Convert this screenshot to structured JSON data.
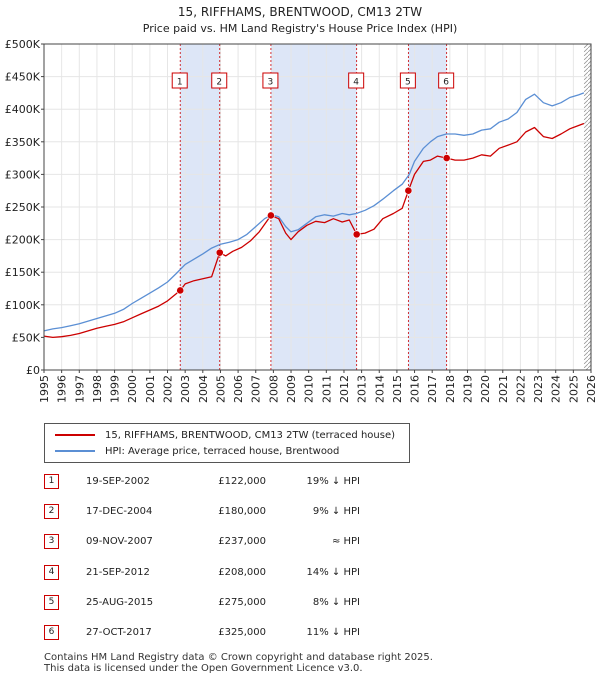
{
  "chart_data": {
    "type": "line",
    "title": "15, RIFFHAMS, BRENTWOOD, CM13 2TW",
    "subtitle": "Price paid vs. HM Land Registry's House Price Index (HPI)",
    "xlim": [
      1995,
      2026
    ],
    "ylim": [
      0,
      500000
    ],
    "x_ticks": [
      "1995",
      "1996",
      "1997",
      "1998",
      "1999",
      "2000",
      "2001",
      "2002",
      "2003",
      "2004",
      "2005",
      "2006",
      "2007",
      "2008",
      "2009",
      "2010",
      "2011",
      "2012",
      "2013",
      "2014",
      "2015",
      "2016",
      "2017",
      "2018",
      "2019",
      "2020",
      "2021",
      "2022",
      "2023",
      "2024",
      "2025",
      "2026"
    ],
    "y_ticks": [
      {
        "value": 0,
        "label": "£0"
      },
      {
        "value": 50000,
        "label": "£50K"
      },
      {
        "value": 100000,
        "label": "£100K"
      },
      {
        "value": 150000,
        "label": "£150K"
      },
      {
        "value": 200000,
        "label": "£200K"
      },
      {
        "value": 250000,
        "label": "£250K"
      },
      {
        "value": 300000,
        "label": "£300K"
      },
      {
        "value": 350000,
        "label": "£350K"
      },
      {
        "value": 400000,
        "label": "£400K"
      },
      {
        "value": 450000,
        "label": "£450K"
      },
      {
        "value": 500000,
        "label": "£500K"
      }
    ],
    "colors": {
      "property": "#cc0000",
      "hpi": "#5b8fd4",
      "shade": "#dde6f7",
      "marker_line": "#cc0000"
    },
    "series": [
      {
        "name": "15, RIFFHAMS, BRENTWOOD, CM13 2TW (terraced house)",
        "color": "#cc0000",
        "points": [
          [
            1995.0,
            52000
          ],
          [
            1995.5,
            50000
          ],
          [
            1996.0,
            51000
          ],
          [
            1996.5,
            53000
          ],
          [
            1997.0,
            56000
          ],
          [
            1997.5,
            60000
          ],
          [
            1998.0,
            64000
          ],
          [
            1998.5,
            67000
          ],
          [
            1999.0,
            70000
          ],
          [
            1999.5,
            74000
          ],
          [
            2000.0,
            80000
          ],
          [
            2000.5,
            86000
          ],
          [
            2001.0,
            92000
          ],
          [
            2001.5,
            98000
          ],
          [
            2002.0,
            106000
          ],
          [
            2002.72,
            122000
          ],
          [
            2003.0,
            132000
          ],
          [
            2003.5,
            137000
          ],
          [
            2004.0,
            140000
          ],
          [
            2004.5,
            143000
          ],
          [
            2004.96,
            180000
          ],
          [
            2005.3,
            175000
          ],
          [
            2005.7,
            182000
          ],
          [
            2006.2,
            188000
          ],
          [
            2006.7,
            198000
          ],
          [
            2007.2,
            212000
          ],
          [
            2007.86,
            237000
          ],
          [
            2008.3,
            232000
          ],
          [
            2008.7,
            210000
          ],
          [
            2009.0,
            200000
          ],
          [
            2009.4,
            212000
          ],
          [
            2009.9,
            222000
          ],
          [
            2010.4,
            228000
          ],
          [
            2010.9,
            226000
          ],
          [
            2011.4,
            232000
          ],
          [
            2011.9,
            227000
          ],
          [
            2012.3,
            230000
          ],
          [
            2012.72,
            208000
          ],
          [
            2013.2,
            210000
          ],
          [
            2013.7,
            216000
          ],
          [
            2014.2,
            232000
          ],
          [
            2014.8,
            240000
          ],
          [
            2015.3,
            248000
          ],
          [
            2015.65,
            275000
          ],
          [
            2016.0,
            300000
          ],
          [
            2016.5,
            320000
          ],
          [
            2016.9,
            322000
          ],
          [
            2017.3,
            328000
          ],
          [
            2017.82,
            325000
          ],
          [
            2018.3,
            322000
          ],
          [
            2018.8,
            322000
          ],
          [
            2019.3,
            325000
          ],
          [
            2019.8,
            330000
          ],
          [
            2020.3,
            328000
          ],
          [
            2020.8,
            340000
          ],
          [
            2021.3,
            345000
          ],
          [
            2021.8,
            350000
          ],
          [
            2022.3,
            365000
          ],
          [
            2022.8,
            372000
          ],
          [
            2023.3,
            358000
          ],
          [
            2023.8,
            355000
          ],
          [
            2024.3,
            362000
          ],
          [
            2024.8,
            370000
          ],
          [
            2025.3,
            375000
          ],
          [
            2025.6,
            378000
          ]
        ]
      },
      {
        "name": "HPI: Average price, terraced house, Brentwood",
        "color": "#5b8fd4",
        "points": [
          [
            1995.0,
            60000
          ],
          [
            1995.5,
            63000
          ],
          [
            1996.0,
            65000
          ],
          [
            1996.5,
            68000
          ],
          [
            1997.0,
            71000
          ],
          [
            1997.5,
            75000
          ],
          [
            1998.0,
            79000
          ],
          [
            1998.5,
            83000
          ],
          [
            1999.0,
            87000
          ],
          [
            1999.5,
            93000
          ],
          [
            2000.0,
            102000
          ],
          [
            2000.5,
            110000
          ],
          [
            2001.0,
            118000
          ],
          [
            2001.5,
            126000
          ],
          [
            2002.0,
            135000
          ],
          [
            2002.5,
            148000
          ],
          [
            2003.0,
            162000
          ],
          [
            2003.5,
            170000
          ],
          [
            2004.0,
            178000
          ],
          [
            2004.5,
            187000
          ],
          [
            2005.0,
            193000
          ],
          [
            2005.5,
            196000
          ],
          [
            2006.0,
            200000
          ],
          [
            2006.5,
            208000
          ],
          [
            2007.0,
            220000
          ],
          [
            2007.5,
            232000
          ],
          [
            2007.9,
            238000
          ],
          [
            2008.3,
            235000
          ],
          [
            2008.7,
            220000
          ],
          [
            2009.0,
            212000
          ],
          [
            2009.4,
            215000
          ],
          [
            2009.9,
            225000
          ],
          [
            2010.4,
            235000
          ],
          [
            2010.9,
            238000
          ],
          [
            2011.4,
            236000
          ],
          [
            2011.9,
            240000
          ],
          [
            2012.3,
            238000
          ],
          [
            2012.7,
            240000
          ],
          [
            2013.2,
            245000
          ],
          [
            2013.7,
            252000
          ],
          [
            2014.2,
            262000
          ],
          [
            2014.8,
            275000
          ],
          [
            2015.3,
            285000
          ],
          [
            2015.7,
            300000
          ],
          [
            2016.0,
            320000
          ],
          [
            2016.5,
            340000
          ],
          [
            2016.9,
            350000
          ],
          [
            2017.3,
            358000
          ],
          [
            2017.8,
            362000
          ],
          [
            2018.3,
            362000
          ],
          [
            2018.8,
            360000
          ],
          [
            2019.3,
            362000
          ],
          [
            2019.8,
            368000
          ],
          [
            2020.3,
            370000
          ],
          [
            2020.8,
            380000
          ],
          [
            2021.3,
            385000
          ],
          [
            2021.8,
            395000
          ],
          [
            2022.3,
            415000
          ],
          [
            2022.8,
            423000
          ],
          [
            2023.3,
            410000
          ],
          [
            2023.8,
            405000
          ],
          [
            2024.3,
            410000
          ],
          [
            2024.8,
            418000
          ],
          [
            2025.3,
            422000
          ],
          [
            2025.6,
            425000
          ]
        ]
      }
    ],
    "sales": [
      {
        "label": "1",
        "x": 2002.72,
        "y": 122000
      },
      {
        "label": "2",
        "x": 2004.96,
        "y": 180000
      },
      {
        "label": "3",
        "x": 2007.86,
        "y": 237000
      },
      {
        "label": "4",
        "x": 2012.72,
        "y": 208000
      },
      {
        "label": "5",
        "x": 2015.65,
        "y": 275000
      },
      {
        "label": "6",
        "x": 2017.82,
        "y": 325000
      }
    ],
    "shaded_ranges": [
      [
        2002.72,
        2004.96
      ],
      [
        2007.86,
        2012.72
      ],
      [
        2015.65,
        2017.82
      ]
    ],
    "future_from": 2025.6
  },
  "legend": {
    "property_label": "15, RIFFHAMS, BRENTWOOD, CM13 2TW (terraced house)",
    "hpi_label": "HPI: Average price, terraced house, Brentwood"
  },
  "sales_table": [
    {
      "num": "1",
      "date": "19-SEP-2002",
      "price": "£122,000",
      "rel": "19% ↓ HPI"
    },
    {
      "num": "2",
      "date": "17-DEC-2004",
      "price": "£180,000",
      "rel": "9% ↓ HPI"
    },
    {
      "num": "3",
      "date": "09-NOV-2007",
      "price": "£237,000",
      "rel": "≈ HPI"
    },
    {
      "num": "4",
      "date": "21-SEP-2012",
      "price": "£208,000",
      "rel": "14% ↓ HPI"
    },
    {
      "num": "5",
      "date": "25-AUG-2015",
      "price": "£275,000",
      "rel": "8% ↓ HPI"
    },
    {
      "num": "6",
      "date": "27-OCT-2017",
      "price": "£325,000",
      "rel": "11% ↓ HPI"
    }
  ],
  "footer": {
    "line1": "Contains HM Land Registry data © Crown copyright and database right 2025.",
    "line2": "This data is licensed under the Open Government Licence v3.0."
  }
}
